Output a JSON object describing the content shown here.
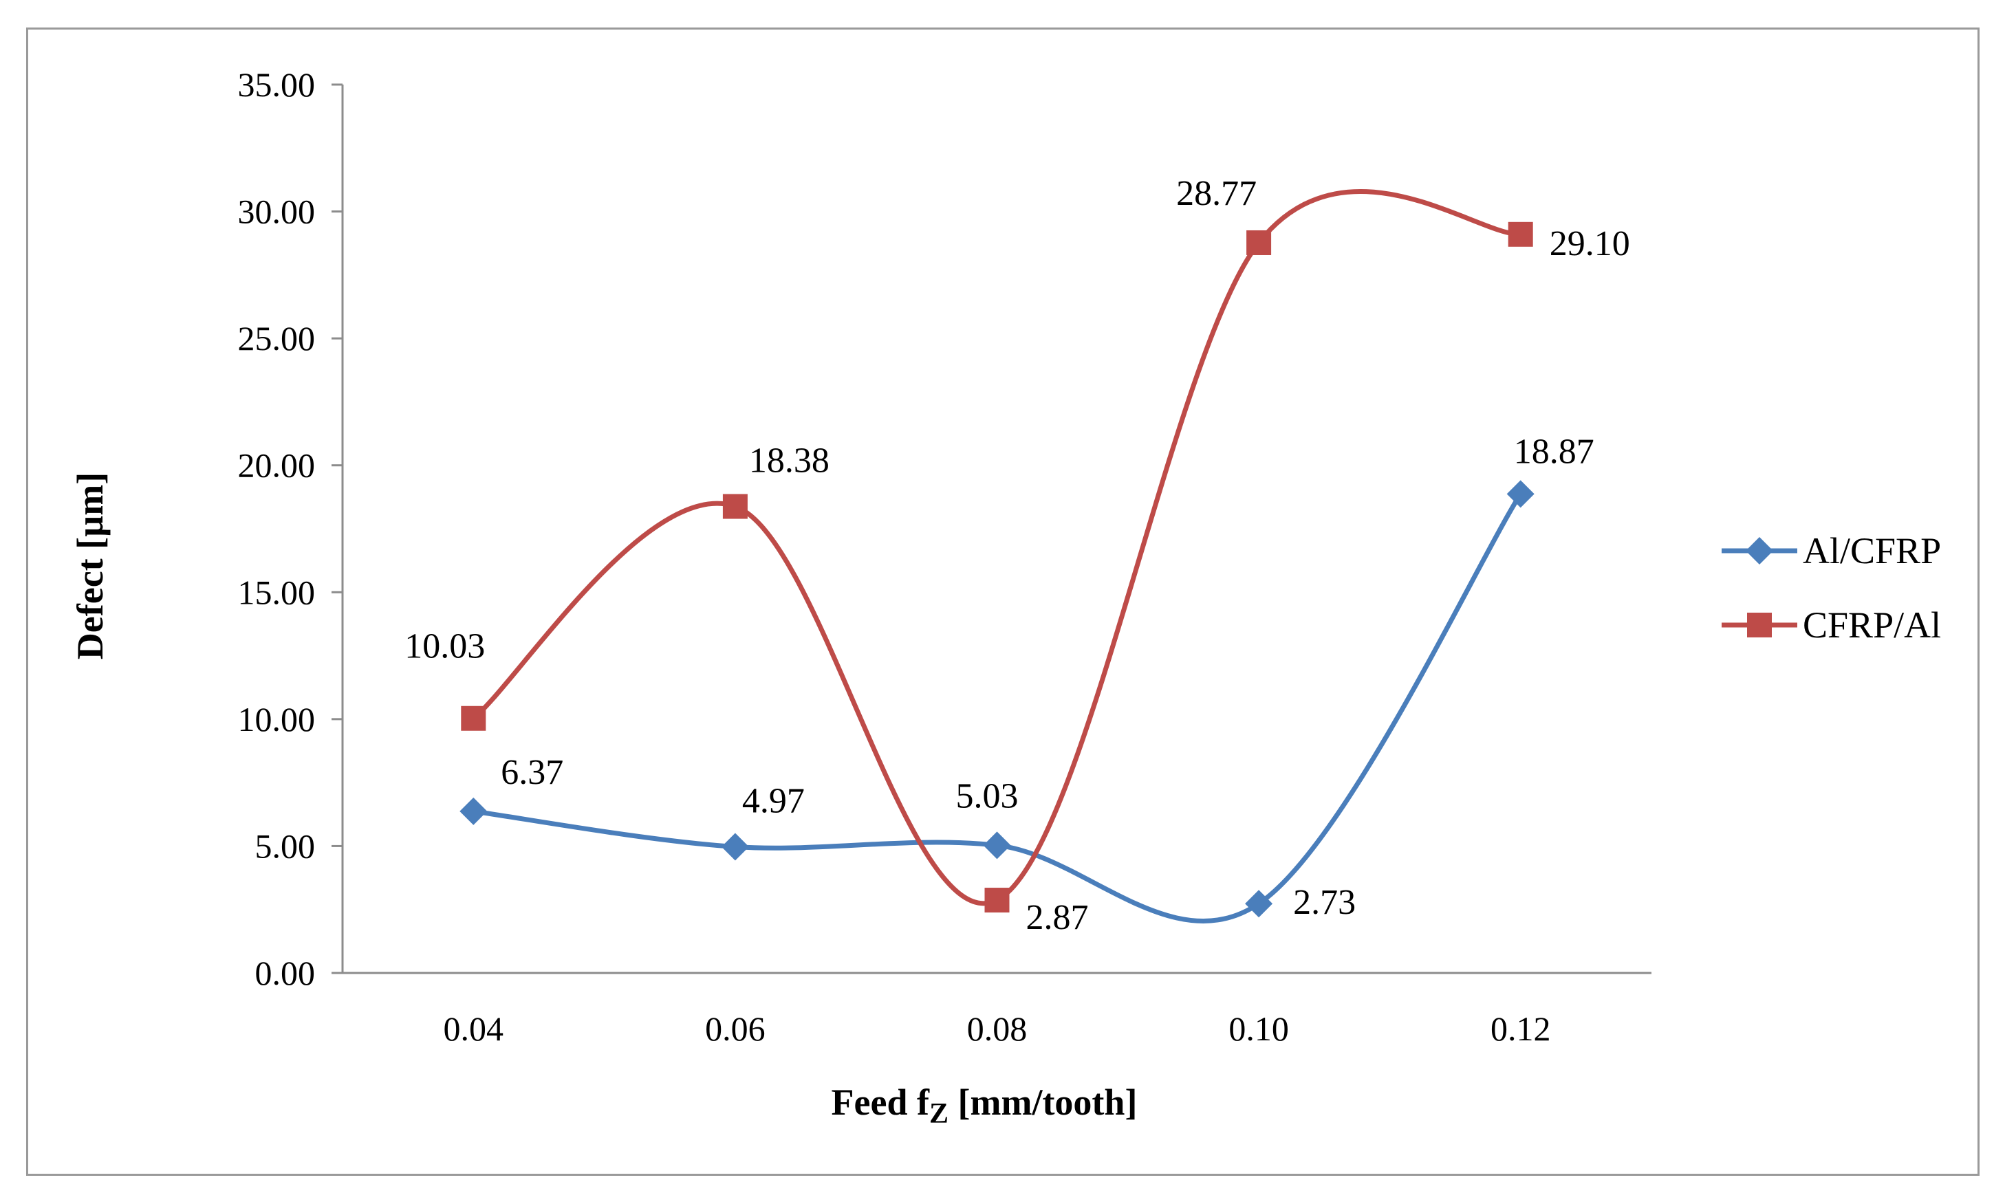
{
  "chart_data": {
    "type": "line",
    "title": "",
    "xlabel": "Feed f",
    "xlabel_sub": "Z",
    "xlabel_suffix": " [mm/tooth]",
    "ylabel": "Defect [µm]",
    "categories": [
      "0.04",
      "0.06",
      "0.08",
      "0.10",
      "0.12"
    ],
    "ylim": [
      0,
      35
    ],
    "yticks": [
      0,
      5,
      10,
      15,
      20,
      25,
      30,
      35
    ],
    "ytick_labels": [
      "0.00",
      "5.00",
      "10.00",
      "15.00",
      "20.00",
      "25.00",
      "30.00",
      "35.00"
    ],
    "grid": false,
    "legend_position": "right",
    "series": [
      {
        "name": "Al/CFRP",
        "color": "#4a7ebb",
        "marker": "diamond",
        "values": [
          6.37,
          4.97,
          5.03,
          2.73,
          18.87
        ],
        "labels": [
          "6.37",
          "4.97",
          "5.03",
          "2.73",
          "18.87"
        ]
      },
      {
        "name": "CFRP/Al",
        "color": "#be4b48",
        "marker": "square",
        "values": [
          10.03,
          18.38,
          2.87,
          28.77,
          29.1
        ],
        "labels": [
          "10.03",
          "18.38",
          "2.87",
          "28.77",
          "29.10"
        ]
      }
    ]
  }
}
